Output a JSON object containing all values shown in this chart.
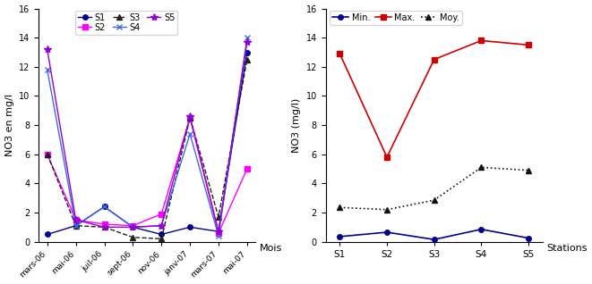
{
  "left": {
    "months": [
      "mars-06",
      "mai-06",
      "juil-06",
      "sept-06",
      "nov-06",
      "janv-07",
      "mars-07",
      "mai-07"
    ],
    "S1": [
      0.5,
      1.1,
      2.4,
      1.0,
      0.5,
      1.0,
      0.7,
      13.0
    ],
    "S2": [
      6.0,
      1.5,
      1.2,
      1.1,
      1.9,
      8.5,
      0.6,
      5.0
    ],
    "S3": [
      6.0,
      1.1,
      1.0,
      0.3,
      0.2,
      8.5,
      1.7,
      12.5
    ],
    "S4": [
      11.8,
      1.1,
      2.4,
      1.0,
      1.1,
      7.4,
      0.4,
      14.0
    ],
    "S5": [
      13.2,
      1.5,
      1.0,
      1.0,
      1.1,
      8.6,
      0.7,
      13.7
    ],
    "ylabel": "NO3 en mg/l",
    "xlabel": "Mois",
    "ylim": [
      0,
      16
    ],
    "yticks": [
      0,
      2,
      4,
      6,
      8,
      10,
      12,
      14,
      16
    ],
    "series_order": [
      "S1",
      "S2",
      "S3",
      "S4",
      "S5"
    ],
    "colors": {
      "S1": "#00008B",
      "S2": "#FF00FF",
      "S3": "#222222",
      "S4": "#4169E1",
      "S5": "#9400D3"
    },
    "markers": {
      "S1": "o",
      "S2": "s",
      "S3": "^",
      "S4": "x",
      "S5": "*"
    },
    "linestyles": {
      "S1": "-",
      "S2": "-",
      "S3": "--",
      "S4": "-",
      "S5": "-"
    },
    "markersizes": {
      "S1": 4,
      "S2": 4,
      "S3": 4,
      "S4": 5,
      "S5": 6
    }
  },
  "right": {
    "stations": [
      "S1",
      "S2",
      "S3",
      "S4",
      "S5"
    ],
    "Min": [
      0.35,
      0.65,
      0.15,
      0.85,
      0.25
    ],
    "Max": [
      12.9,
      5.8,
      12.5,
      13.8,
      13.5
    ],
    "Moy": [
      2.35,
      2.2,
      2.85,
      5.1,
      4.9
    ],
    "ylabel": "NO3 (mg/l)",
    "xlabel": "Stations",
    "ylim": [
      0,
      16
    ],
    "yticks": [
      0,
      2,
      4,
      6,
      8,
      10,
      12,
      14,
      16
    ],
    "series_order": [
      "Min",
      "Max",
      "Moy"
    ],
    "labels": {
      "Min": "Min.",
      "Max": "Max.",
      "Moy": "Moy."
    },
    "colors": {
      "Min": "#00008B",
      "Max": "#CC0000",
      "Moy": "#111111"
    },
    "markers": {
      "Min": "o",
      "Max": "s",
      "Moy": "^"
    },
    "linestyles": {
      "Min": "-",
      "Max": "-",
      "Moy": ":"
    },
    "markersizes": {
      "Min": 4,
      "Max": 4,
      "Moy": 4
    }
  }
}
